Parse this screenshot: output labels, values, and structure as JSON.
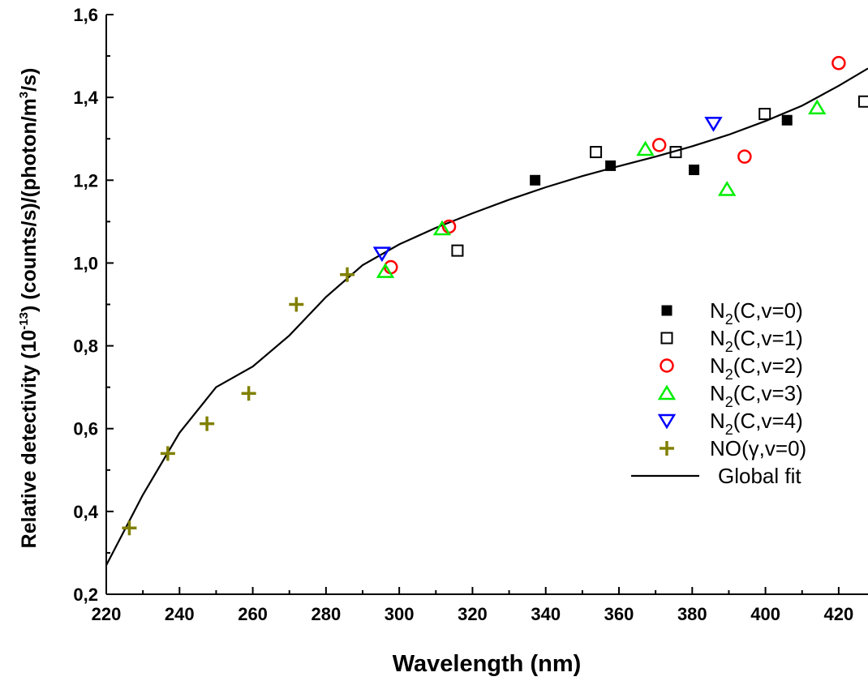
{
  "chart_data": {
    "type": "scatter",
    "xlabel": "Wavelength (nm)",
    "ylabel": {
      "prefix": "Relative detectivity (10",
      "exp": "-13",
      "middle": ") (counts/s)/(photon/m",
      "exp2": "3",
      "suffix": "/s)"
    },
    "xlim": [
      220,
      428
    ],
    "ylim": [
      0.2,
      1.6
    ],
    "x_ticks": [
      "220",
      "240",
      "260",
      "280",
      "300",
      "320",
      "340",
      "360",
      "380",
      "400",
      "420"
    ],
    "y_ticks": [
      "0,2",
      "0,4",
      "0,6",
      "0,8",
      "1,0",
      "1,2",
      "1,4",
      "1,6"
    ],
    "legend_position": "right",
    "series": [
      {
        "name": "N2(C,v=0)",
        "label_main": "N",
        "label_sub": "2",
        "label_rest": "(C,v=0)",
        "marker": "square-filled",
        "color": "#000000",
        "points": [
          [
            337.1,
            1.2
          ],
          [
            357.7,
            1.235
          ],
          [
            380.5,
            1.225
          ],
          [
            405.9,
            1.345
          ]
        ]
      },
      {
        "name": "N2(C,v=1)",
        "label_main": "N",
        "label_sub": "2",
        "label_rest": "(C,v=1)",
        "marker": "square-open",
        "color": "#000000",
        "points": [
          [
            315.9,
            1.03
          ],
          [
            353.7,
            1.268
          ],
          [
            375.5,
            1.268
          ],
          [
            399.8,
            1.36
          ],
          [
            427.0,
            1.39
          ]
        ]
      },
      {
        "name": "N2(C,v=2)",
        "label_main": "N",
        "label_sub": "2",
        "label_rest": "(C,v=2)",
        "marker": "circle-open",
        "color": "#ff0000",
        "points": [
          [
            297.7,
            0.99
          ],
          [
            313.6,
            1.088
          ],
          [
            371.0,
            1.285
          ],
          [
            394.3,
            1.257
          ],
          [
            420.0,
            1.483
          ]
        ]
      },
      {
        "name": "N2(C,v=3)",
        "label_main": "N",
        "label_sub": "2",
        "label_rest": "(C,v=3)",
        "marker": "triangle-up-open",
        "color": "#00ee00",
        "points": [
          [
            296.2,
            0.98
          ],
          [
            311.7,
            1.083
          ],
          [
            367.2,
            1.275
          ],
          [
            389.5,
            1.178
          ],
          [
            414.1,
            1.375
          ]
        ]
      },
      {
        "name": "N2(C,v=4)",
        "label_main": "N",
        "label_sub": "2",
        "label_rest": "(C,v=4)",
        "marker": "triangle-down-open",
        "color": "#0000ff",
        "points": [
          [
            295.3,
            1.023
          ],
          [
            385.8,
            1.337
          ]
        ]
      },
      {
        "name": "NO(γ,v=0)",
        "label_main": "NO(γ,v=0)",
        "label_sub": "",
        "label_rest": "",
        "marker": "plus",
        "color": "#808000",
        "points": [
          [
            226.3,
            0.36
          ],
          [
            236.8,
            0.54
          ],
          [
            247.5,
            0.612
          ],
          [
            258.9,
            0.685
          ],
          [
            271.9,
            0.9
          ],
          [
            285.8,
            0.972
          ]
        ]
      }
    ],
    "fit": {
      "name": "Global fit",
      "color": "#000000",
      "points": [
        [
          220,
          0.27
        ],
        [
          230,
          0.44
        ],
        [
          240,
          0.59
        ],
        [
          250,
          0.7
        ],
        [
          260,
          0.75
        ],
        [
          270,
          0.825
        ],
        [
          280,
          0.918
        ],
        [
          290,
          0.995
        ],
        [
          300,
          1.045
        ],
        [
          310,
          1.085
        ],
        [
          320,
          1.12
        ],
        [
          330,
          1.153
        ],
        [
          340,
          1.183
        ],
        [
          350,
          1.21
        ],
        [
          360,
          1.234
        ],
        [
          370,
          1.257
        ],
        [
          380,
          1.282
        ],
        [
          390,
          1.31
        ],
        [
          400,
          1.343
        ],
        [
          410,
          1.38
        ],
        [
          420,
          1.428
        ],
        [
          428,
          1.47
        ]
      ]
    }
  }
}
